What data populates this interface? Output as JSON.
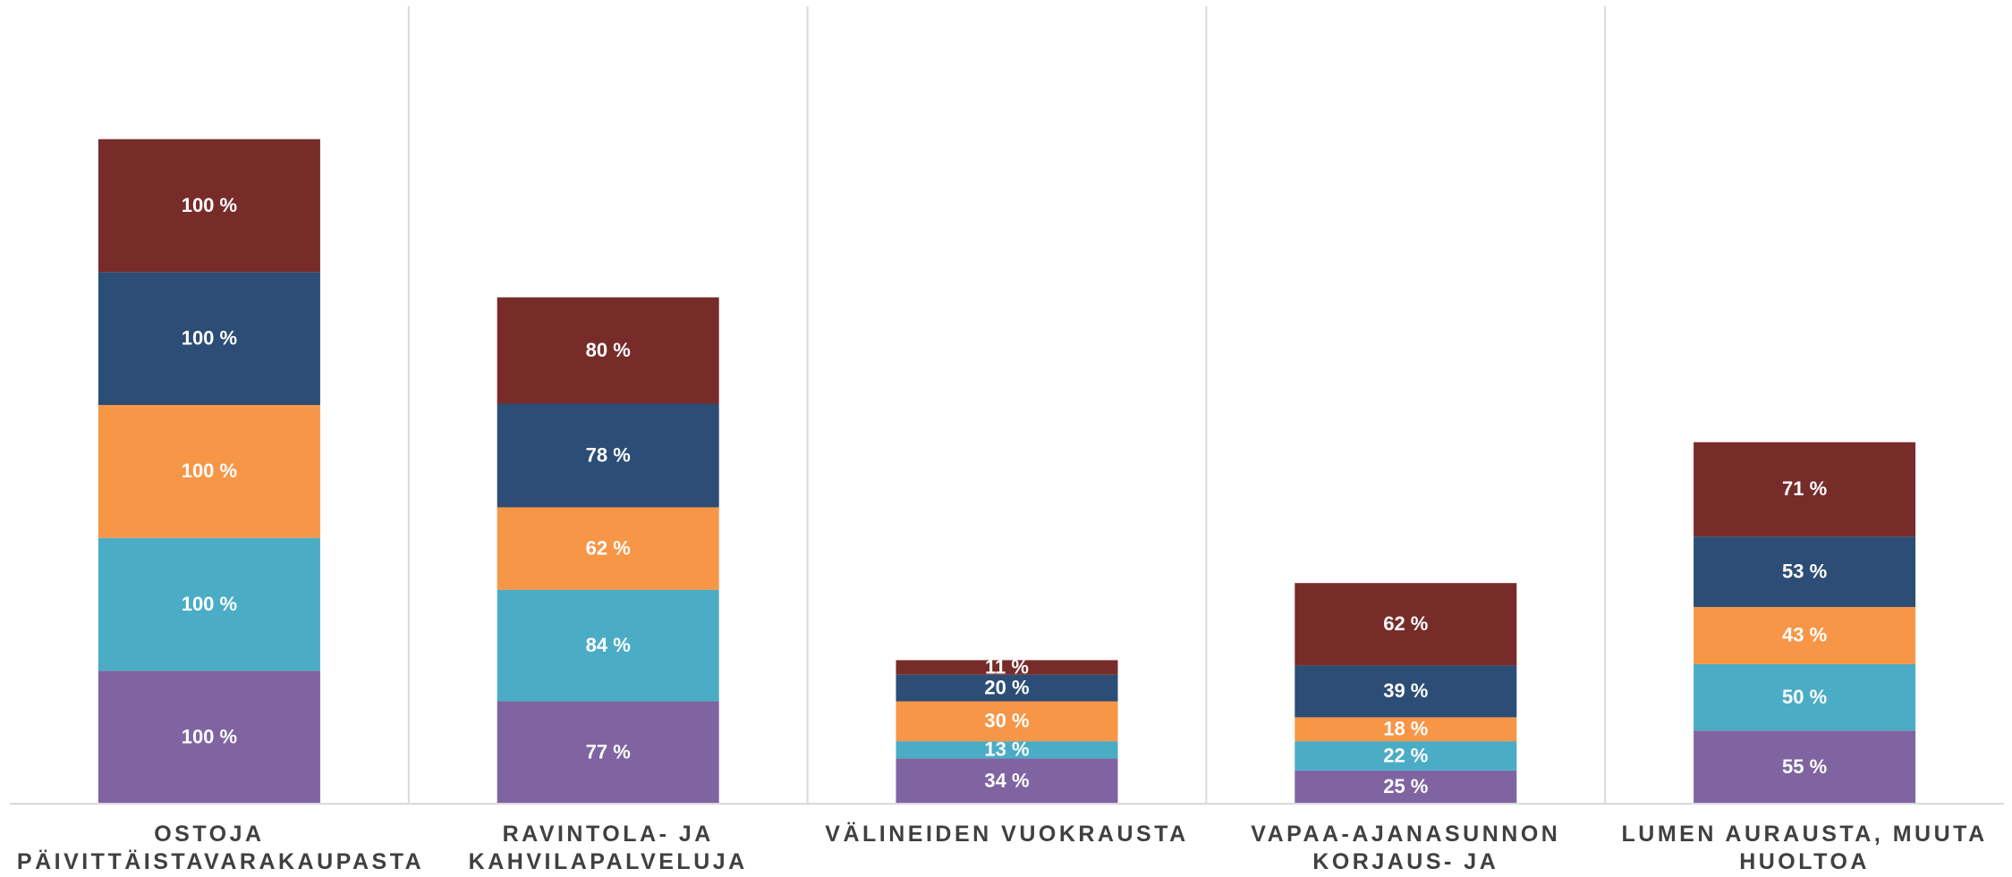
{
  "chart_data": {
    "type": "stacked_bar",
    "categories": [
      "OSTOJA PÄIVITTÄISTAVARAKAUPASTA",
      "RAVINTOLA- JA KAHVILAPALVELUJA",
      "VÄLINEIDEN VUOKRAUSTA",
      "VAPAA-AJANASUNNON KORJAUS- JA RAKENNUSTÖITÄ",
      "LUMEN AURAUSTA, MUUTA HUOLTOA"
    ],
    "ylim": [
      0,
      600
    ],
    "series": [
      {
        "color": "#8064a2",
        "values": [
          100,
          77,
          34,
          25,
          55
        ],
        "value_labels": [
          "100 %",
          "77 %",
          "34 %",
          "25 %",
          "55 %"
        ]
      },
      {
        "color": "#4bacc6",
        "values": [
          100,
          84,
          13,
          22,
          50
        ],
        "value_labels": [
          "100 %",
          "84 %",
          "13 %",
          "22 %",
          "50 %"
        ]
      },
      {
        "color": "#f79646",
        "values": [
          100,
          62,
          30,
          18,
          43
        ],
        "value_labels": [
          "100 %",
          "62 %",
          "30 %",
          "18 %",
          "43 %"
        ]
      },
      {
        "color": "#2c4d75",
        "values": [
          100,
          78,
          20,
          39,
          53
        ],
        "value_labels": [
          "100 %",
          "78 %",
          "20 %",
          "39 %",
          "53 %"
        ]
      },
      {
        "color": "#772c2a",
        "values": [
          100,
          80,
          11,
          62,
          71
        ],
        "value_labels": [
          "100 %",
          "80 %",
          "11 %",
          "62 %",
          "71 %"
        ]
      }
    ]
  }
}
